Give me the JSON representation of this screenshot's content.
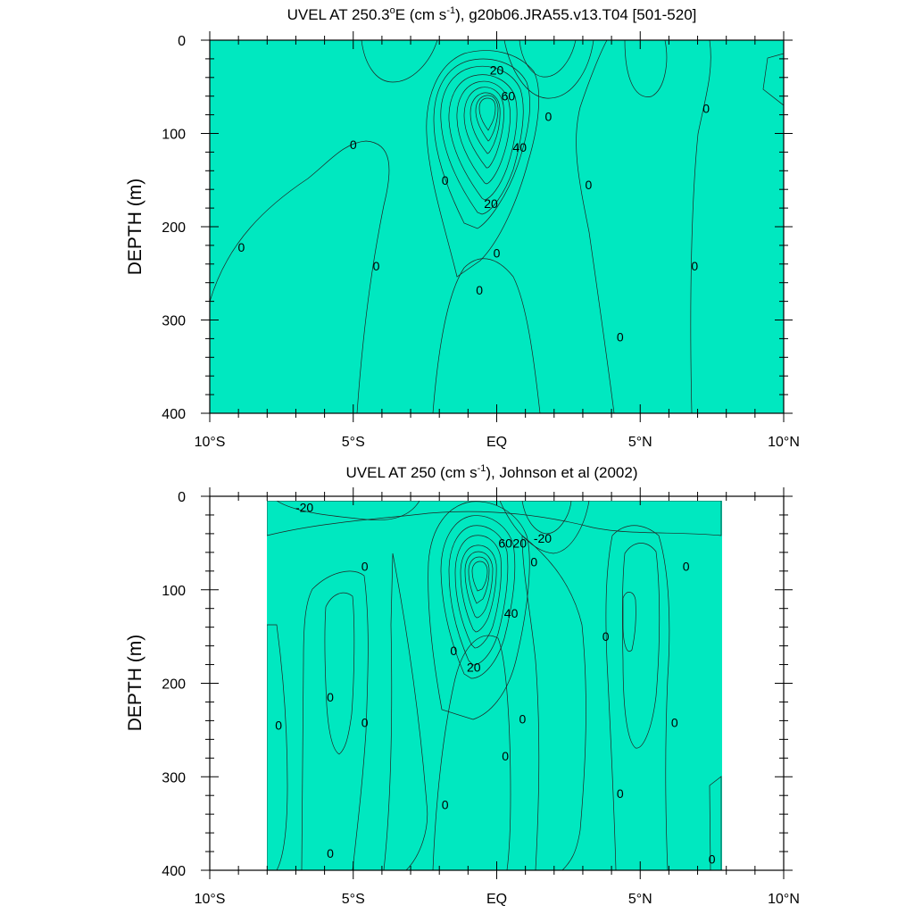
{
  "colors": {
    "c_neg40": "#1e90ff",
    "c_neg20": "#33d6ff",
    "c_neg10": "#00ffff",
    "c_zero": "#00e8c0",
    "c_pos10": "#00ee44",
    "c_pos20": "#66ee00",
    "c_pos30": "#ffff00",
    "c_pos40": "#ffd84a",
    "c_pos50": "#ffb347",
    "c_pos60": "#ff8c3a",
    "c_pos70": "#ff5a1a",
    "c_pos80": "#ee1010"
  },
  "chart_data": [
    {
      "type": "contour",
      "title_main": "UVEL AT 250.3",
      "title_sup": "o",
      "title_mid": "E (cm s",
      "title_unit_sup": "-1",
      "title_end": "), g20b06.JRA55.v13.T04 [501-520]",
      "ylabel": "DEPTH (m)",
      "x_ticks": [
        "10°S",
        "5°S",
        "EQ",
        "5°N",
        "10°N"
      ],
      "y_ticks": [
        "0",
        "100",
        "200",
        "300",
        "400"
      ],
      "xlim": [
        -10,
        10
      ],
      "ylim": [
        400,
        0
      ],
      "contour_labels": [
        {
          "text": "20",
          "lat": 0.0,
          "depth": 32
        },
        {
          "text": "60",
          "lat": 0.4,
          "depth": 60
        },
        {
          "text": "40",
          "lat": 0.8,
          "depth": 115
        },
        {
          "text": "20",
          "lat": -0.2,
          "depth": 175
        },
        {
          "text": "0",
          "lat": 1.8,
          "depth": 82
        },
        {
          "text": "0",
          "lat": -5.0,
          "depth": 112
        },
        {
          "text": "0",
          "lat": -8.9,
          "depth": 222
        },
        {
          "text": "0",
          "lat": -4.2,
          "depth": 242
        },
        {
          "text": "0",
          "lat": -1.8,
          "depth": 150
        },
        {
          "text": "0",
          "lat": 0.0,
          "depth": 228
        },
        {
          "text": "0",
          "lat": -0.6,
          "depth": 268
        },
        {
          "text": "0",
          "lat": 3.2,
          "depth": 155
        },
        {
          "text": "0",
          "lat": 4.3,
          "depth": 318
        },
        {
          "text": "0",
          "lat": 7.3,
          "depth": 73
        },
        {
          "text": "0",
          "lat": 6.9,
          "depth": 242
        }
      ]
    },
    {
      "type": "contour",
      "title_main": "UVEL AT 250 (cm s",
      "title_unit_sup": "-1",
      "title_end": "), Johnson et al (2002)",
      "ylabel": "DEPTH (m)",
      "x_ticks": [
        "10°S",
        "5°S",
        "EQ",
        "5°N",
        "10°N"
      ],
      "y_ticks": [
        "0",
        "100",
        "200",
        "300",
        "400"
      ],
      "xlim": [
        -10,
        10
      ],
      "ylim": [
        400,
        0
      ],
      "data_lat_range": [
        -8,
        8.1
      ],
      "contour_labels": [
        {
          "text": "-20",
          "lat": -6.7,
          "depth": 12
        },
        {
          "text": "-20",
          "lat": 1.6,
          "depth": 45
        },
        {
          "text": "60",
          "lat": 0.3,
          "depth": 50
        },
        {
          "text": "20",
          "lat": 0.8,
          "depth": 50
        },
        {
          "text": "0",
          "lat": 1.3,
          "depth": 70
        },
        {
          "text": "40",
          "lat": 0.5,
          "depth": 125
        },
        {
          "text": "20",
          "lat": -0.8,
          "depth": 183
        },
        {
          "text": "0",
          "lat": -1.5,
          "depth": 165
        },
        {
          "text": "0",
          "lat": -4.6,
          "depth": 75
        },
        {
          "text": "0",
          "lat": -5.8,
          "depth": 215
        },
        {
          "text": "0",
          "lat": -7.6,
          "depth": 245
        },
        {
          "text": "0",
          "lat": -4.6,
          "depth": 242
        },
        {
          "text": "0",
          "lat": 0.9,
          "depth": 238
        },
        {
          "text": "0",
          "lat": 0.3,
          "depth": 278
        },
        {
          "text": "0",
          "lat": -1.8,
          "depth": 330
        },
        {
          "text": "0",
          "lat": -5.8,
          "depth": 382
        },
        {
          "text": "0",
          "lat": 3.8,
          "depth": 150
        },
        {
          "text": "0",
          "lat": 4.3,
          "depth": 318
        },
        {
          "text": "0",
          "lat": 6.6,
          "depth": 75
        },
        {
          "text": "0",
          "lat": 6.2,
          "depth": 242
        },
        {
          "text": "0",
          "lat": 7.5,
          "depth": 388
        }
      ]
    }
  ]
}
